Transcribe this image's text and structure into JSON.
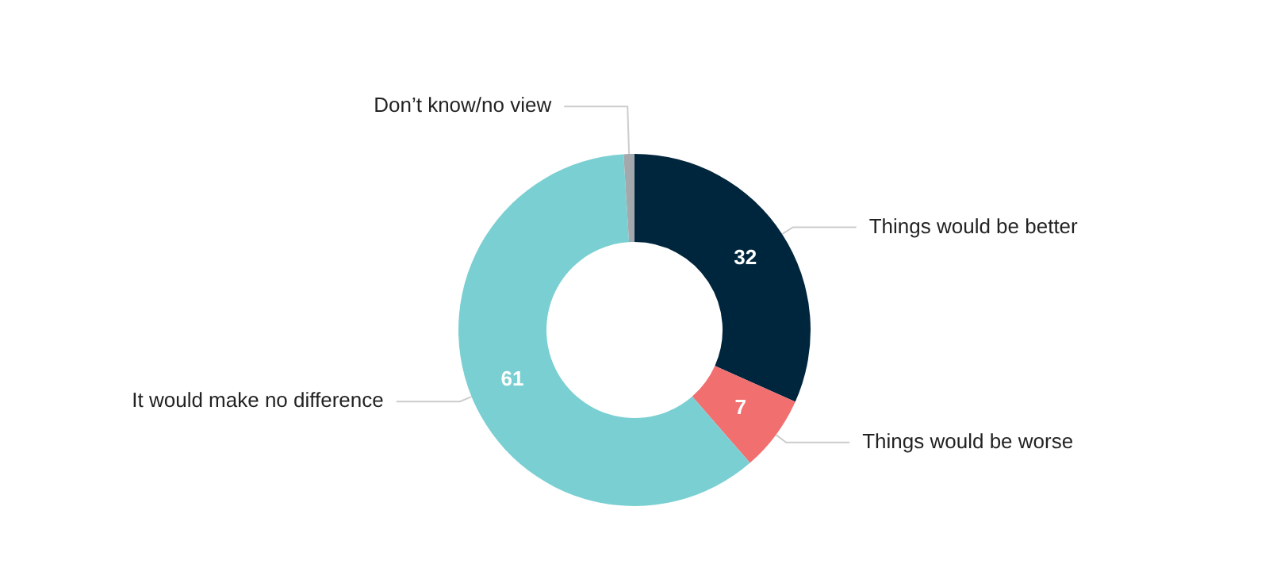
{
  "chart_data": {
    "type": "donut",
    "categories": [
      "Things would be better",
      "Things would be worse",
      "It would make no difference",
      "Don’t know/no view"
    ],
    "values": [
      32,
      7,
      61,
      1
    ],
    "colors": [
      "#00263e",
      "#f26f6f",
      "#7acfd2",
      "#a3a8ad"
    ],
    "value_labels": [
      "32",
      "7",
      "61",
      null
    ],
    "legend": false
  }
}
